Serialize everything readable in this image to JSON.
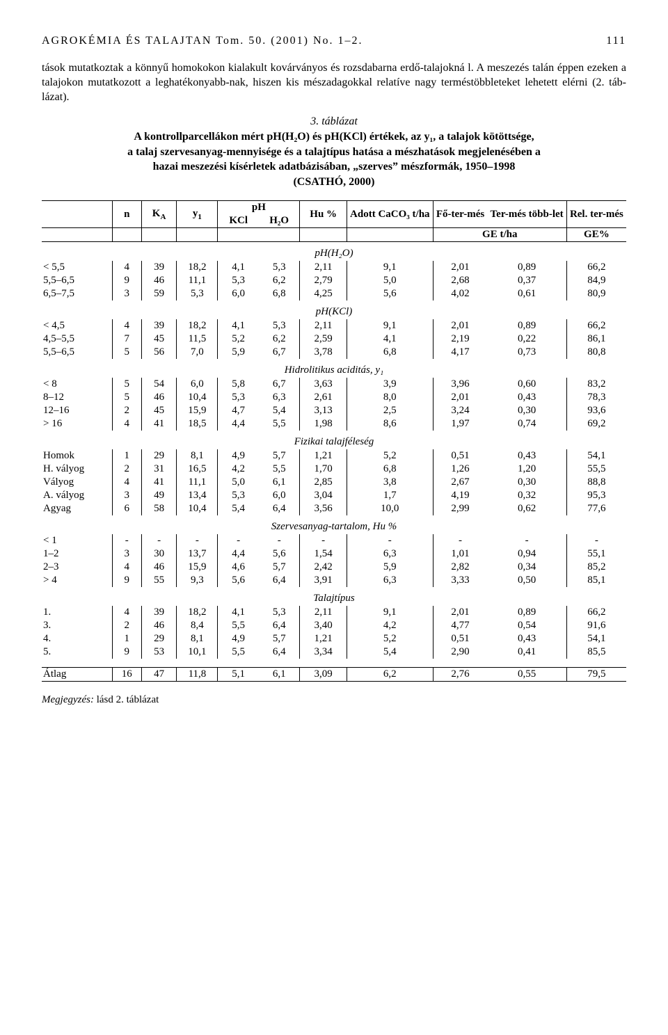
{
  "header": {
    "journal": "AGROKÉMIA ÉS TALAJTAN Tom. 50. (2001) No. 1–2.",
    "pagenum": "111"
  },
  "paragraph": "tások mutatkoztak a könnyű homokokon kialakult kovárványos és rozsdabarna erdő-talajokná l. A meszezés talán éppen ezeken a talajokon mutatkozott a leghatékonyabb-nak, hiszen kis mészadagokkal relatíve nagy terméstöbbleteket lehetett elérni (2. táb-lázat).",
  "caption_title": "3. táblázat",
  "caption_body1": "A kontrollparcellákon mért pH(H₂O) és pH(KCl) értékek, az y₁, a talajok kötöttsége,",
  "caption_body2": "a talaj szervesanyag-mennyisége és a talajtípus hatása a mészhatások megjelenésében a",
  "caption_body3": "hazai meszezési kísérletek adatbázisában, „szerves” mészformák, 1950–1998",
  "caption_body4": "(CSATHÓ, 2000)",
  "headers": {
    "n": "n",
    "KA": "K",
    "KA_sub": "A",
    "y1": "y",
    "y1_sub": "1",
    "pH": "pH",
    "Hu": "Hu %",
    "adott": "Adott CaCO₃ t/ha",
    "fotermes": "Fő-ter-més",
    "termestobb": "Ter-més több-let",
    "reltermes": "Rel. ter-més",
    "KCl": "KCl",
    "H2O": "H₂O",
    "GEtha": "GE t/ha",
    "GEpct": "GE%"
  },
  "sections": [
    {
      "title": "pH(H₂O)",
      "rows": [
        [
          "< 5,5",
          "4",
          "39",
          "18,2",
          "4,1",
          "5,3",
          "2,11",
          "9,1",
          "2,01",
          "0,89",
          "66,2"
        ],
        [
          "5,5–6,5",
          "9",
          "46",
          "11,1",
          "5,3",
          "6,2",
          "2,79",
          "5,0",
          "2,68",
          "0,37",
          "84,9"
        ],
        [
          "6,5–7,5",
          "3",
          "59",
          "5,3",
          "6,0",
          "6,8",
          "4,25",
          "5,6",
          "4,02",
          "0,61",
          "80,9"
        ]
      ]
    },
    {
      "title": "pH(KCl)",
      "rows": [
        [
          "< 4,5",
          "4",
          "39",
          "18,2",
          "4,1",
          "5,3",
          "2,11",
          "9,1",
          "2,01",
          "0,89",
          "66,2"
        ],
        [
          "4,5–5,5",
          "7",
          "45",
          "11,5",
          "5,2",
          "6,2",
          "2,59",
          "4,1",
          "2,19",
          "0,22",
          "86,1"
        ],
        [
          "5,5–6,5",
          "5",
          "56",
          "7,0",
          "5,9",
          "6,7",
          "3,78",
          "6,8",
          "4,17",
          "0,73",
          "80,8"
        ]
      ]
    },
    {
      "title": "Hidrolitikus aciditás, y₁",
      "rows": [
        [
          "< 8",
          "5",
          "54",
          "6,0",
          "5,8",
          "6,7",
          "3,63",
          "3,9",
          "3,96",
          "0,60",
          "83,2"
        ],
        [
          "8–12",
          "5",
          "46",
          "10,4",
          "5,3",
          "6,3",
          "2,61",
          "8,0",
          "2,01",
          "0,43",
          "78,3"
        ],
        [
          "12–16",
          "2",
          "45",
          "15,9",
          "4,7",
          "5,4",
          "3,13",
          "2,5",
          "3,24",
          "0,30",
          "93,6"
        ],
        [
          "> 16",
          "4",
          "41",
          "18,5",
          "4,4",
          "5,5",
          "1,98",
          "8,6",
          "1,97",
          "0,74",
          "69,2"
        ]
      ]
    },
    {
      "title": "Fizikai talajféleség",
      "rows": [
        [
          "Homok",
          "1",
          "29",
          "8,1",
          "4,9",
          "5,7",
          "1,21",
          "5,2",
          "0,51",
          "0,43",
          "54,1"
        ],
        [
          "H. vályog",
          "2",
          "31",
          "16,5",
          "4,2",
          "5,5",
          "1,70",
          "6,8",
          "1,26",
          "1,20",
          "55,5"
        ],
        [
          "Vályog",
          "4",
          "41",
          "11,1",
          "5,0",
          "6,1",
          "2,85",
          "3,8",
          "2,67",
          "0,30",
          "88,8"
        ],
        [
          "A. vályog",
          "3",
          "49",
          "13,4",
          "5,3",
          "6,0",
          "3,04",
          "1,7",
          "4,19",
          "0,32",
          "95,3"
        ],
        [
          "Agyag",
          "6",
          "58",
          "10,4",
          "5,4",
          "6,4",
          "3,56",
          "10,0",
          "2,99",
          "0,62",
          "77,6"
        ]
      ]
    },
    {
      "title": "Szervesanyag-tartalom, Hu %",
      "rows": [
        [
          "< 1",
          "-",
          "-",
          "-",
          "-",
          "-",
          "-",
          "-",
          "-",
          "-",
          "-"
        ],
        [
          "1–2",
          "3",
          "30",
          "13,7",
          "4,4",
          "5,6",
          "1,54",
          "6,3",
          "1,01",
          "0,94",
          "55,1"
        ],
        [
          "2–3",
          "4",
          "46",
          "15,9",
          "4,6",
          "5,7",
          "2,42",
          "5,9",
          "2,82",
          "0,34",
          "85,2"
        ],
        [
          "> 4",
          "9",
          "55",
          "9,3",
          "5,6",
          "6,4",
          "3,91",
          "6,3",
          "3,33",
          "0,50",
          "85,1"
        ]
      ]
    },
    {
      "title": "Talajtípus",
      "rows": [
        [
          "1.",
          "4",
          "39",
          "18,2",
          "4,1",
          "5,3",
          "2,11",
          "9,1",
          "2,01",
          "0,89",
          "66,2"
        ],
        [
          "3.",
          "2",
          "46",
          "8,4",
          "5,5",
          "6,4",
          "3,40",
          "4,2",
          "4,77",
          "0,54",
          "91,6"
        ],
        [
          "4.",
          "1",
          "29",
          "8,1",
          "4,9",
          "5,7",
          "1,21",
          "5,2",
          "0,51",
          "0,43",
          "54,1"
        ],
        [
          "5.",
          "9",
          "53",
          "10,1",
          "5,5",
          "6,4",
          "3,34",
          "5,4",
          "2,90",
          "0,41",
          "85,5"
        ]
      ]
    }
  ],
  "avg": [
    "Átlag",
    "16",
    "47",
    "11,8",
    "5,1",
    "6,1",
    "3,09",
    "6,2",
    "2,76",
    "0,55",
    "79,5"
  ],
  "note_label": "Megjegyzés:",
  "note_text": " lásd 2. táblázat"
}
